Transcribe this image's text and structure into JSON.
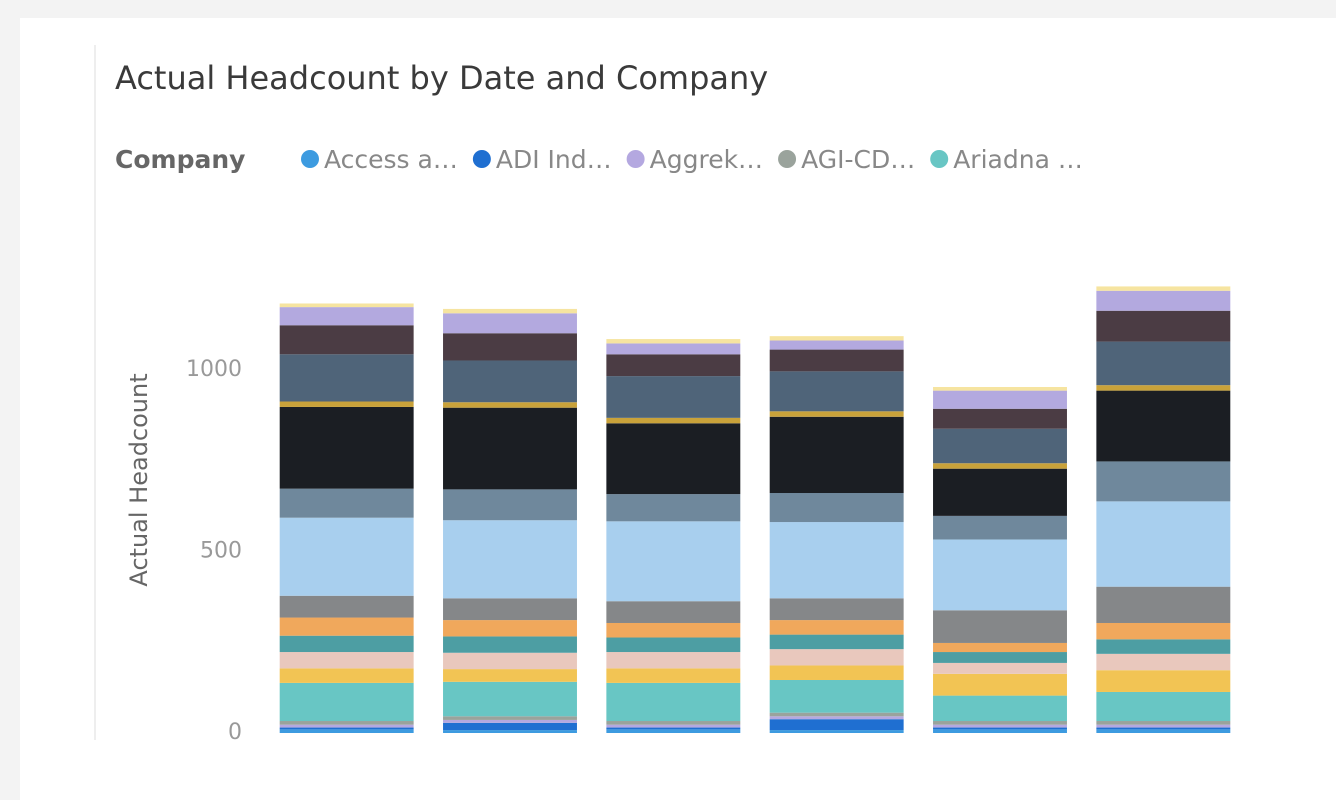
{
  "chart_data": {
    "type": "stacked_bar",
    "title": "Actual Headcount by Date and Company",
    "legend_title": "Company",
    "y_label": "Actual Headcount",
    "categories": [
      null,
      null,
      null,
      null,
      null,
      null
    ],
    "ylim": [
      0,
      1300
    ],
    "yticks": [
      0,
      500,
      1000
    ],
    "grid": false,
    "legend_position": "top",
    "series": [
      {
        "name": "Access a…",
        "color": "#3d9be0",
        "values": [
          10,
          8,
          10,
          8,
          10,
          10
        ]
      },
      {
        "name": "ADI Ind…",
        "color": "#1f6fd1",
        "values": [
          5,
          20,
          5,
          30,
          5,
          5
        ]
      },
      {
        "name": "Aggrek…",
        "color": "#b4a8e0",
        "values": [
          8,
          8,
          8,
          8,
          8,
          8
        ]
      },
      {
        "name": "AGI-CD…",
        "color": "#9aa39c",
        "values": [
          10,
          10,
          10,
          10,
          10,
          10
        ]
      },
      {
        "name": "Ariadna …",
        "color": "#68c6c4",
        "values": [
          105,
          95,
          105,
          90,
          70,
          80
        ]
      },
      {
        "color": "#f2c454",
        "values": [
          40,
          35,
          40,
          40,
          60,
          60
        ]
      },
      {
        "color": "#e9c8bd",
        "values": [
          45,
          45,
          45,
          45,
          30,
          45
        ]
      },
      {
        "color": "#4d9ea3",
        "values": [
          45,
          45,
          40,
          40,
          30,
          40
        ]
      },
      {
        "color": "#f0a85c",
        "values": [
          50,
          45,
          40,
          40,
          25,
          45
        ]
      },
      {
        "color": "#858789",
        "values": [
          60,
          60,
          60,
          60,
          90,
          100
        ]
      },
      {
        "color": "#a8cfee",
        "values": [
          215,
          215,
          220,
          210,
          195,
          235
        ]
      },
      {
        "color": "#6f889c",
        "values": [
          80,
          85,
          75,
          80,
          65,
          110
        ]
      },
      {
        "color": "#1b1e23",
        "values": [
          225,
          225,
          195,
          210,
          130,
          195
        ]
      },
      {
        "color": "#c9a23a",
        "values": [
          15,
          15,
          15,
          15,
          15,
          15
        ]
      },
      {
        "color": "#4f6479",
        "values": [
          130,
          115,
          115,
          110,
          95,
          120
        ]
      },
      {
        "color": "#4b3c44",
        "values": [
          80,
          75,
          60,
          60,
          55,
          85
        ]
      },
      {
        "color": "#b3a9df",
        "values": [
          50,
          55,
          30,
          25,
          50,
          55
        ]
      },
      {
        "color": "#f6e4a0",
        "values": [
          10,
          12,
          12,
          12,
          10,
          12
        ]
      }
    ]
  }
}
